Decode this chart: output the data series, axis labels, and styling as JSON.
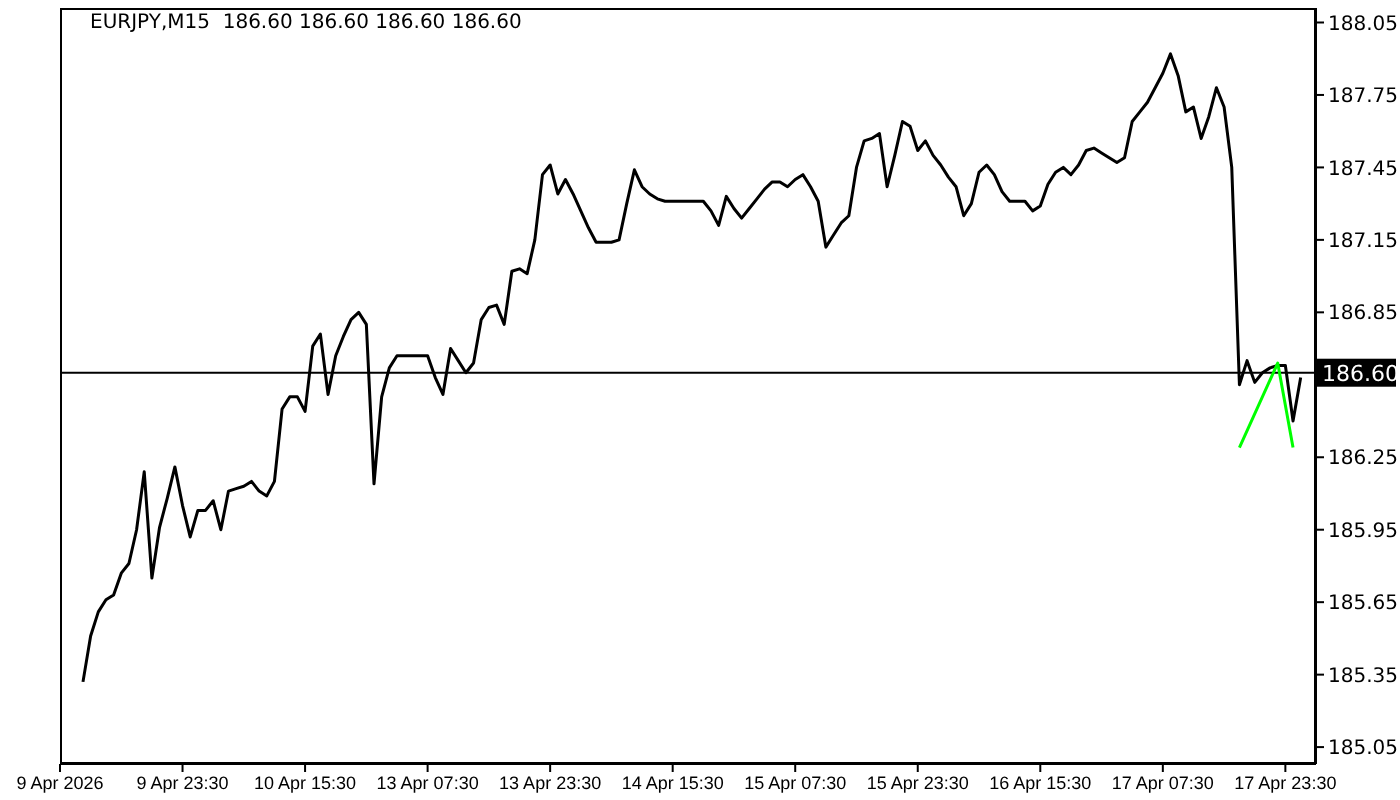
{
  "chart_data": {
    "type": "line",
    "title": "EURJPY,M15  186.60 186.60 186.60 186.60",
    "categories": [
      "9 Apr 2026",
      null,
      null,
      null,
      null,
      null,
      null,
      null,
      null,
      null,
      null,
      null,
      null,
      null,
      null,
      null,
      "9 Apr 23:30",
      null,
      null,
      null,
      null,
      null,
      null,
      null,
      null,
      null,
      null,
      null,
      null,
      null,
      null,
      null,
      "10 Apr 15:30",
      null,
      null,
      null,
      null,
      null,
      null,
      null,
      null,
      null,
      null,
      null,
      null,
      null,
      null,
      null,
      "13 Apr 07:30",
      null,
      null,
      null,
      null,
      null,
      null,
      null,
      null,
      null,
      null,
      null,
      null,
      null,
      null,
      null,
      "13 Apr 23:30",
      null,
      null,
      null,
      null,
      null,
      null,
      null,
      null,
      null,
      null,
      null,
      null,
      null,
      null,
      null,
      "14 Apr 15:30",
      null,
      null,
      null,
      null,
      null,
      null,
      null,
      null,
      null,
      null,
      null,
      null,
      null,
      null,
      null,
      "15 Apr 07:30",
      null,
      null,
      null,
      null,
      null,
      null,
      null,
      null,
      null,
      null,
      null,
      null,
      null,
      null,
      null,
      "15 Apr 23:30",
      null,
      null,
      null,
      null,
      null,
      null,
      null,
      null,
      null,
      null,
      null,
      null,
      null,
      null,
      null,
      "16 Apr 15:30",
      null,
      null,
      null,
      null,
      null,
      null,
      null,
      null,
      null,
      null,
      null,
      null,
      null,
      null,
      null,
      "17 Apr 07:30",
      null,
      null,
      null,
      null,
      null,
      null,
      null,
      null,
      null,
      null,
      null,
      null,
      null,
      null,
      null,
      "17 Apr 23:30",
      null,
      null,
      null,
      null
    ],
    "ylim": [
      184.98,
      188.11
    ],
    "yticks": [
      185.05,
      185.35,
      185.65,
      185.95,
      186.25,
      {
        "value": 186.55,
        "label": null
      },
      186.85,
      187.15,
      187.45,
      187.75,
      188.05
    ],
    "grid": false,
    "legend": false,
    "marker": "none",
    "line_style": "solid",
    "ref_lines": [
      {
        "axis": "y",
        "value": 186.6,
        "label": "186.60",
        "color": "#000000"
      }
    ],
    "series": [
      {
        "color": "#000000",
        "values": [
          null,
          null,
          null,
          185.32,
          185.51,
          185.61,
          185.66,
          185.68,
          185.77,
          185.81,
          185.95,
          186.19,
          185.75,
          185.96,
          186.08,
          186.21,
          186.05,
          185.92,
          186.03,
          186.03,
          186.07,
          185.95,
          186.11,
          186.12,
          186.13,
          186.15,
          186.11,
          186.09,
          186.15,
          186.45,
          186.5,
          186.5,
          186.44,
          186.71,
          186.76,
          186.51,
          186.67,
          186.75,
          186.82,
          186.85,
          186.8,
          186.14,
          186.5,
          186.62,
          186.67,
          186.67,
          186.67,
          186.67,
          186.67,
          186.58,
          186.51,
          186.7,
          186.65,
          186.6,
          186.64,
          186.82,
          186.87,
          186.88,
          186.8,
          187.02,
          187.03,
          187.01,
          187.15,
          187.42,
          187.46,
          187.34,
          187.4,
          187.34,
          187.27,
          187.2,
          187.14,
          187.14,
          187.14,
          187.15,
          187.3,
          187.44,
          187.37,
          187.34,
          187.32,
          187.31,
          187.31,
          187.31,
          187.31,
          187.31,
          187.31,
          187.27,
          187.21,
          187.33,
          187.28,
          187.24,
          187.28,
          187.32,
          187.36,
          187.39,
          187.39,
          187.37,
          187.4,
          187.42,
          187.37,
          187.31,
          187.12,
          187.17,
          187.22,
          187.25,
          187.45,
          187.56,
          187.57,
          187.59,
          187.37,
          187.5,
          187.64,
          187.62,
          187.52,
          187.56,
          187.5,
          187.46,
          187.41,
          187.37,
          187.25,
          187.3,
          187.43,
          187.46,
          187.42,
          187.35,
          187.31,
          187.31,
          187.31,
          187.27,
          187.29,
          187.38,
          187.43,
          187.45,
          187.42,
          187.46,
          187.52,
          187.53,
          187.51,
          187.49,
          187.47,
          187.49,
          187.64,
          187.68,
          187.72,
          187.78,
          187.84,
          187.92,
          187.83,
          187.68,
          187.7,
          187.57,
          187.66,
          187.78,
          187.7,
          187.45,
          186.55,
          186.65,
          186.56,
          186.6,
          186.62,
          186.63,
          186.63,
          186.4,
          186.58,
          null,
          null
        ]
      },
      {
        "color": "#00ff00",
        "values": [
          null,
          null,
          null,
          null,
          null,
          null,
          null,
          null,
          null,
          null,
          null,
          null,
          null,
          null,
          null,
          null,
          null,
          null,
          null,
          null,
          null,
          null,
          null,
          null,
          null,
          null,
          null,
          null,
          null,
          null,
          null,
          null,
          null,
          null,
          null,
          null,
          null,
          null,
          null,
          null,
          null,
          null,
          null,
          null,
          null,
          null,
          null,
          null,
          null,
          null,
          null,
          null,
          null,
          null,
          null,
          null,
          null,
          null,
          null,
          null,
          null,
          null,
          null,
          null,
          null,
          null,
          null,
          null,
          null,
          null,
          null,
          null,
          null,
          null,
          null,
          null,
          null,
          null,
          null,
          null,
          null,
          null,
          null,
          null,
          null,
          null,
          null,
          null,
          null,
          null,
          null,
          null,
          null,
          null,
          null,
          null,
          null,
          null,
          null,
          null,
          null,
          null,
          null,
          null,
          null,
          null,
          null,
          null,
          null,
          null,
          null,
          null,
          null,
          null,
          null,
          null,
          null,
          null,
          null,
          null,
          null,
          null,
          null,
          null,
          null,
          null,
          null,
          null,
          null,
          null,
          null,
          null,
          null,
          null,
          null,
          null,
          null,
          null,
          null,
          null,
          null,
          null,
          null,
          null,
          null,
          null,
          null,
          null,
          null,
          null,
          null,
          null,
          null,
          null,
          186.29,
          null,
          null,
          null,
          null,
          186.64,
          null,
          186.29,
          null,
          null,
          null
        ]
      }
    ]
  }
}
